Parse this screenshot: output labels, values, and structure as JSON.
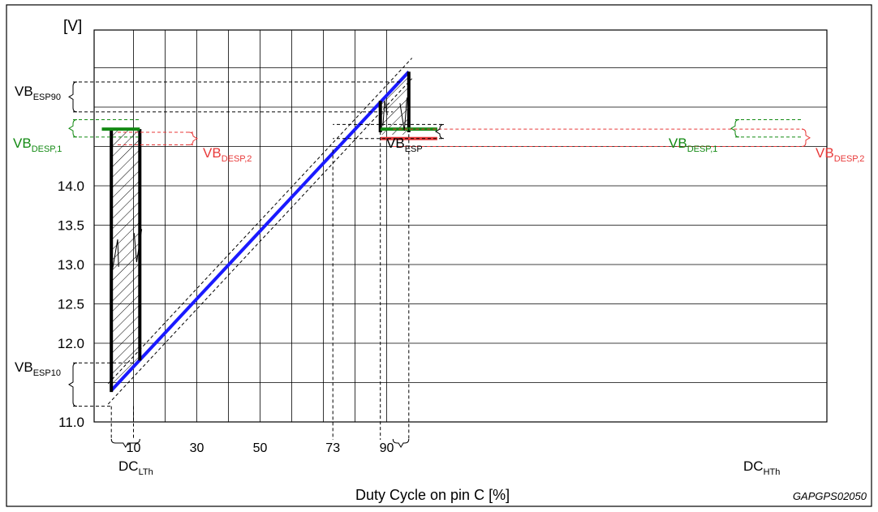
{
  "chart_data": {
    "type": "line",
    "title": "",
    "ylabel": "[V]",
    "xlabel": "Duty Cycle on pin C  [%]",
    "figure_code": "GAPGPS02050",
    "xlim": [
      0,
      100
    ],
    "ylim": [
      11.0,
      15.0
    ],
    "x_tick_labels": [
      10,
      30,
      50,
      73,
      90
    ],
    "y_tick_labels": [
      "11.0",
      "12.0",
      "12.5",
      "13.0",
      "13.5",
      "14.0"
    ],
    "y_tick_values": [
      11.0,
      12.0,
      12.5,
      13.0,
      13.5,
      14.0
    ],
    "series": [
      {
        "points": [
          [
            3,
            11.4
          ],
          [
            97,
            15.45
          ]
        ],
        "color": "#1a1aff"
      }
    ],
    "tolerance_offset": 0.13,
    "annotations": [
      {
        "base": "VB",
        "sub": "ESP90",
        "color": "#000000"
      },
      {
        "base": "VB",
        "sub": "DESP,1",
        "color": "#138a13"
      },
      {
        "base": "VB",
        "sub": "DESP,2",
        "color": "#e83a3a"
      },
      {
        "base": "VB",
        "sub": "ESP",
        "color": "#000000"
      },
      {
        "base": "VB",
        "sub": "DESP,1",
        "color": "#138a13"
      },
      {
        "base": "VB",
        "sub": "DESP,2",
        "color": "#e83a3a"
      },
      {
        "base": "VB",
        "sub": "ESP10",
        "color": "#000000"
      },
      {
        "base": "DC",
        "sub": "LTh",
        "color": "#000000"
      },
      {
        "base": "DC",
        "sub": "HTh",
        "color": "#000000"
      }
    ],
    "colors": {
      "line": "#1a1aff",
      "desp1": "#138a13",
      "desp2": "#e83a3a",
      "grid": "#000000"
    }
  }
}
